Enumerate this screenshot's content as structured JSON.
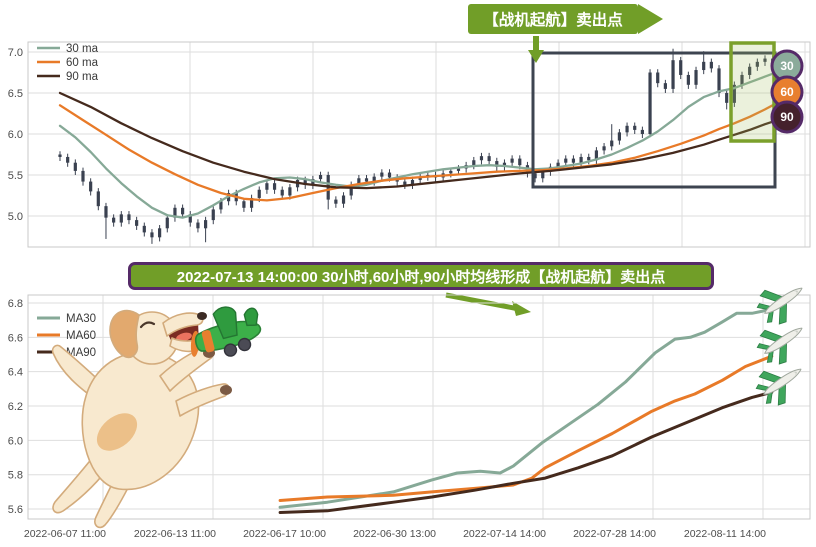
{
  "banner": {
    "text": "2022-07-13 14:00:00 30小时,60小时,90小时均线形成【战机起航】卖出点"
  },
  "colors": {
    "annotation_green": "#719e28",
    "purple_border": "#552a68",
    "candle": "#3a4150",
    "ma30": "#86a997",
    "ma60": "#e87a28",
    "ma90": "#452a1d",
    "selection_box": "#3d4450",
    "highlight_box": "#7ba02b"
  },
  "chart_data": [
    {
      "type": "candlestick+line",
      "title": "",
      "ylim": [
        4.62,
        7.12
      ],
      "y_ticks": [
        7.0,
        6.5,
        6.0,
        5.5,
        5.0
      ],
      "grid": true,
      "legend_position": "upper-left",
      "legend": [
        "30 ma",
        "60 ma",
        "90 ma"
      ],
      "annotation": "【战机起航】卖出点",
      "badges": [
        {
          "label": "30",
          "color": "#8bab9b"
        },
        {
          "label": "60",
          "color": "#e87f2f"
        },
        {
          "label": "90",
          "color": "#45212c"
        }
      ],
      "first_open": 5.75,
      "candle_closes": [
        5.72,
        5.65,
        5.55,
        5.42,
        5.3,
        5.12,
        4.98,
        4.92,
        5.02,
        4.95,
        4.88,
        4.8,
        4.74,
        4.85,
        4.98,
        5.1,
        5.02,
        4.92,
        4.85,
        4.95,
        5.08,
        5.18,
        5.28,
        5.18,
        5.1,
        5.22,
        5.32,
        5.4,
        5.32,
        5.25,
        5.35,
        5.44,
        5.38,
        5.45,
        5.5,
        5.2,
        5.15,
        5.25,
        5.38,
        5.46,
        5.42,
        5.48,
        5.53,
        5.47,
        5.42,
        5.38,
        5.44,
        5.48,
        5.5,
        5.47,
        5.52,
        5.55,
        5.58,
        5.62,
        5.68,
        5.73,
        5.67,
        5.6,
        5.65,
        5.7,
        5.62,
        5.52,
        5.46,
        5.54,
        5.6,
        5.65,
        5.7,
        5.65,
        5.72,
        5.68,
        5.8,
        5.85,
        5.92,
        6.02,
        6.1,
        6.05,
        6.0,
        6.75,
        6.62,
        6.55,
        6.9,
        6.72,
        6.6,
        6.78,
        6.88,
        6.8,
        6.5,
        6.38,
        6.6,
        6.72,
        6.82,
        6.88,
        6.92,
        6.86,
        6.88
      ],
      "candle_wick_overrides": {
        "6": {
          "low": 4.72
        },
        "12": {
          "low": 4.66
        },
        "19": {
          "low": 4.68
        },
        "35": {
          "low": 5.08
        },
        "72": {
          "high": 6.12
        },
        "77": {
          "low": 5.96
        },
        "80": {
          "high": 7.04
        },
        "84": {
          "high": 7.01
        },
        "87": {
          "low": 6.3
        }
      },
      "series": [
        {
          "name": "30 ma",
          "color": "#86a997",
          "points": [
            [
              0,
              6.1
            ],
            [
              2,
              5.96
            ],
            [
              4,
              5.78
            ],
            [
              6,
              5.58
            ],
            [
              8,
              5.4
            ],
            [
              10,
              5.24
            ],
            [
              12,
              5.1
            ],
            [
              14,
              5.01
            ],
            [
              16,
              4.98
            ],
            [
              18,
              5.03
            ],
            [
              20,
              5.13
            ],
            [
              22,
              5.24
            ],
            [
              24,
              5.33
            ],
            [
              26,
              5.41
            ],
            [
              28,
              5.46
            ],
            [
              30,
              5.47
            ],
            [
              32,
              5.45
            ],
            [
              34,
              5.41
            ],
            [
              36,
              5.38
            ],
            [
              38,
              5.36
            ],
            [
              40,
              5.38
            ],
            [
              42,
              5.43
            ],
            [
              44,
              5.47
            ],
            [
              46,
              5.51
            ],
            [
              48,
              5.54
            ],
            [
              50,
              5.57
            ],
            [
              52,
              5.59
            ],
            [
              54,
              5.61
            ],
            [
              56,
              5.62
            ],
            [
              58,
              5.61
            ],
            [
              60,
              5.59
            ],
            [
              62,
              5.57
            ],
            [
              64,
              5.58
            ],
            [
              66,
              5.61
            ],
            [
              68,
              5.64
            ],
            [
              70,
              5.69
            ],
            [
              72,
              5.75
            ],
            [
              74,
              5.83
            ],
            [
              76,
              5.92
            ],
            [
              78,
              6.03
            ],
            [
              80,
              6.17
            ],
            [
              82,
              6.33
            ],
            [
              84,
              6.45
            ],
            [
              86,
              6.52
            ],
            [
              88,
              6.56
            ],
            [
              90,
              6.63
            ],
            [
              92,
              6.7
            ],
            [
              94,
              6.77
            ]
          ]
        },
        {
          "name": "60 ma",
          "color": "#e87a28",
          "points": [
            [
              0,
              6.35
            ],
            [
              3,
              6.17
            ],
            [
              6,
              5.99
            ],
            [
              9,
              5.81
            ],
            [
              12,
              5.65
            ],
            [
              15,
              5.51
            ],
            [
              18,
              5.38
            ],
            [
              21,
              5.28
            ],
            [
              24,
              5.21
            ],
            [
              27,
              5.19
            ],
            [
              30,
              5.22
            ],
            [
              33,
              5.28
            ],
            [
              36,
              5.34
            ],
            [
              39,
              5.39
            ],
            [
              42,
              5.43
            ],
            [
              45,
              5.46
            ],
            [
              48,
              5.48
            ],
            [
              51,
              5.5
            ],
            [
              54,
              5.52
            ],
            [
              57,
              5.54
            ],
            [
              60,
              5.55
            ],
            [
              63,
              5.56
            ],
            [
              66,
              5.58
            ],
            [
              69,
              5.61
            ],
            [
              72,
              5.65
            ],
            [
              75,
              5.71
            ],
            [
              78,
              5.79
            ],
            [
              81,
              5.88
            ],
            [
              84,
              5.98
            ],
            [
              86,
              6.06
            ],
            [
              88,
              6.13
            ],
            [
              90,
              6.21
            ],
            [
              92,
              6.3
            ],
            [
              94,
              6.4
            ]
          ]
        },
        {
          "name": "90 ma",
          "color": "#452a1d",
          "points": [
            [
              0,
              6.5
            ],
            [
              4,
              6.33
            ],
            [
              8,
              6.13
            ],
            [
              12,
              5.95
            ],
            [
              16,
              5.79
            ],
            [
              20,
              5.65
            ],
            [
              24,
              5.54
            ],
            [
              28,
              5.45
            ],
            [
              32,
              5.39
            ],
            [
              36,
              5.35
            ],
            [
              40,
              5.34
            ],
            [
              44,
              5.36
            ],
            [
              48,
              5.4
            ],
            [
              52,
              5.44
            ],
            [
              56,
              5.48
            ],
            [
              60,
              5.52
            ],
            [
              64,
              5.55
            ],
            [
              68,
              5.59
            ],
            [
              72,
              5.63
            ],
            [
              76,
              5.69
            ],
            [
              80,
              5.77
            ],
            [
              84,
              5.87
            ],
            [
              86,
              5.93
            ],
            [
              88,
              5.99
            ],
            [
              90,
              6.05
            ],
            [
              92,
              6.12
            ],
            [
              94,
              6.18
            ]
          ]
        }
      ]
    },
    {
      "type": "line",
      "title": "",
      "ylim": [
        5.54,
        6.85
      ],
      "y_ticks": [
        6.8,
        6.6,
        6.4,
        6.2,
        6.0,
        5.8,
        5.6
      ],
      "grid": true,
      "legend_position": "upper-left",
      "legend": [
        "MA30",
        "MA60",
        "MA90"
      ],
      "x_labels": [
        "2022-06-07 11:00",
        "2022-06-13 11:00",
        "2022-06-17 10:00",
        "2022-06-30 13:00",
        "2022-07-14 14:00",
        "2022-07-28 14:00",
        "2022-08-11 14:00"
      ],
      "series": [
        {
          "name": "MA30",
          "color": "#86a997",
          "points": [
            [
              1.61,
              5.61
            ],
            [
              2.04,
              5.64
            ],
            [
              2.64,
              5.7
            ],
            [
              2.99,
              5.77
            ],
            [
              3.22,
              5.81
            ],
            [
              3.43,
              5.82
            ],
            [
              3.61,
              5.81
            ],
            [
              3.73,
              5.85
            ],
            [
              4.0,
              5.99
            ],
            [
              4.25,
              6.1
            ],
            [
              4.5,
              6.21
            ],
            [
              4.75,
              6.34
            ],
            [
              5.02,
              6.51
            ],
            [
              5.2,
              6.59
            ],
            [
              5.34,
              6.6
            ],
            [
              5.47,
              6.63
            ],
            [
              5.63,
              6.69
            ],
            [
              5.76,
              6.74
            ],
            [
              5.9,
              6.74
            ],
            [
              6.05,
              6.76
            ]
          ]
        },
        {
          "name": "MA60",
          "color": "#e87a28",
          "points": [
            [
              1.61,
              5.65
            ],
            [
              2.04,
              5.67
            ],
            [
              2.64,
              5.68
            ],
            [
              2.99,
              5.7
            ],
            [
              3.38,
              5.72
            ],
            [
              3.73,
              5.74
            ],
            [
              3.9,
              5.78
            ],
            [
              4.02,
              5.84
            ],
            [
              4.32,
              5.94
            ],
            [
              4.63,
              6.04
            ],
            [
              4.99,
              6.17
            ],
            [
              5.2,
              6.23
            ],
            [
              5.38,
              6.27
            ],
            [
              5.63,
              6.35
            ],
            [
              5.84,
              6.43
            ],
            [
              6.08,
              6.49
            ]
          ]
        },
        {
          "name": "MA90",
          "color": "#452a1d",
          "points": [
            [
              1.61,
              5.58
            ],
            [
              2.04,
              5.59
            ],
            [
              2.64,
              5.64
            ],
            [
              2.99,
              5.67
            ],
            [
              3.38,
              5.71
            ],
            [
              3.73,
              5.75
            ],
            [
              4.02,
              5.78
            ],
            [
              4.32,
              5.84
            ],
            [
              4.63,
              5.91
            ],
            [
              4.99,
              6.02
            ],
            [
              5.29,
              6.1
            ],
            [
              5.63,
              6.19
            ],
            [
              5.9,
              6.25
            ],
            [
              6.08,
              6.28
            ]
          ]
        }
      ]
    }
  ]
}
